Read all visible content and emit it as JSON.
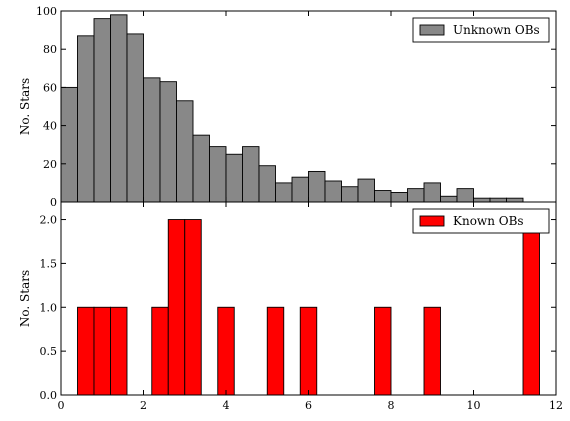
{
  "chart_data": [
    {
      "type": "bar",
      "panel": "top",
      "ylabel": "No. Stars",
      "xlim": [
        0,
        12
      ],
      "ylim": [
        0,
        100
      ],
      "xticks": [
        "0",
        "2",
        "4",
        "6",
        "8",
        "10",
        "12"
      ],
      "yticks": [
        "0",
        "20",
        "40",
        "60",
        "80",
        "100"
      ],
      "bin_width": 0.4,
      "bin_start": 0.0,
      "legend": {
        "label": "Unknown OBs",
        "placement": "top-right"
      },
      "color": "#888888",
      "values": [
        60,
        87,
        96,
        98,
        88,
        65,
        63,
        53,
        35,
        29,
        25,
        29,
        19,
        10,
        13,
        16,
        11,
        8,
        12,
        6,
        5,
        7,
        10,
        3,
        7,
        2,
        2,
        2
      ]
    },
    {
      "type": "bar",
      "panel": "bottom",
      "xlabel": "",
      "ylabel": "No. Stars",
      "xlim": [
        0,
        12
      ],
      "ylim": [
        0,
        2.2
      ],
      "xticks": [
        "0",
        "2",
        "4",
        "6",
        "8",
        "10",
        "12"
      ],
      "yticks": [
        "0.0",
        "0.5",
        "1.0",
        "1.5",
        "2.0"
      ],
      "legend": {
        "label": "Known OBs",
        "placement": "top-right"
      },
      "color": "#ff0000",
      "bars": [
        {
          "x0": 0.4,
          "x1": 0.8,
          "value": 1
        },
        {
          "x0": 0.8,
          "x1": 1.2,
          "value": 1
        },
        {
          "x0": 1.2,
          "x1": 1.6,
          "value": 1
        },
        {
          "x0": 2.2,
          "x1": 2.6,
          "value": 1
        },
        {
          "x0": 2.6,
          "x1": 3.0,
          "value": 2
        },
        {
          "x0": 3.0,
          "x1": 3.4,
          "value": 2
        },
        {
          "x0": 3.8,
          "x1": 4.2,
          "value": 1
        },
        {
          "x0": 5.0,
          "x1": 5.4,
          "value": 1
        },
        {
          "x0": 5.8,
          "x1": 6.2,
          "value": 1
        },
        {
          "x0": 7.6,
          "x1": 8.0,
          "value": 1
        },
        {
          "x0": 8.8,
          "x1": 9.2,
          "value": 1
        },
        {
          "x0": 11.2,
          "x1": 11.6,
          "value": 2
        }
      ]
    }
  ]
}
